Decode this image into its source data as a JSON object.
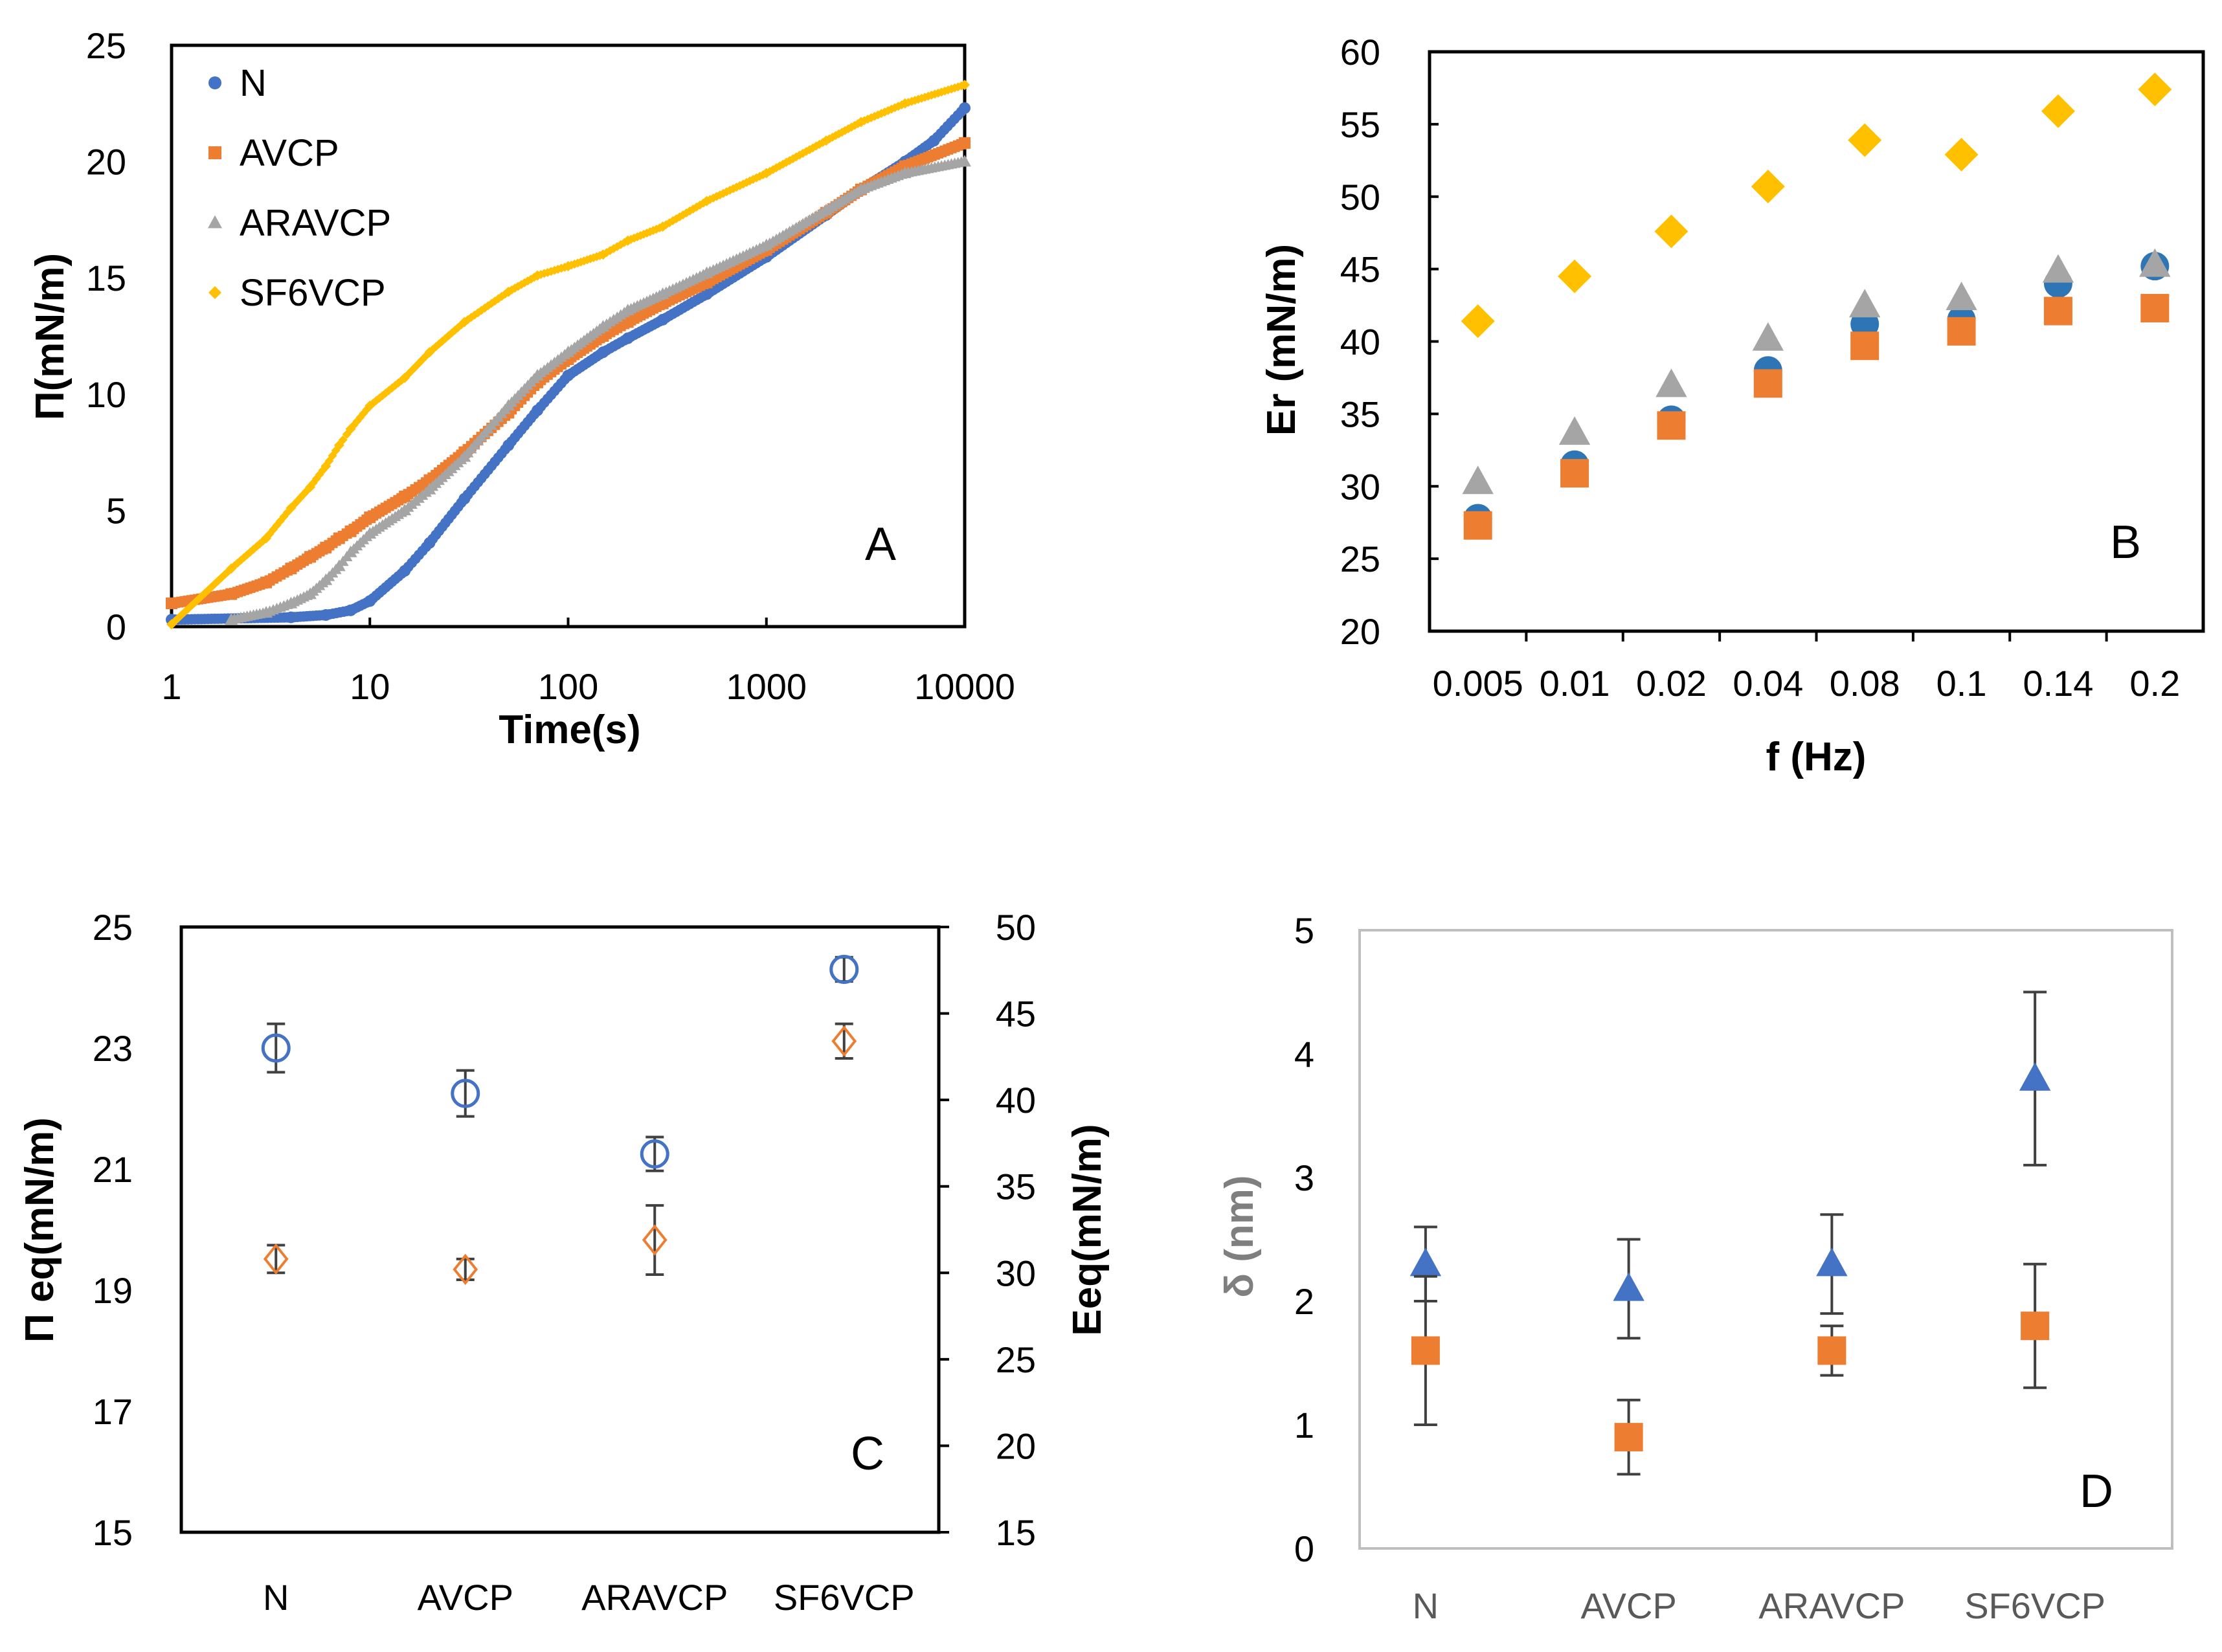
{
  "chart_data": [
    {
      "panel": "A",
      "type": "scatter",
      "panel_label": "A",
      "xlabel": "Time(s)",
      "ylabel": "Π(mN/m)",
      "xscale": "log",
      "xlim": [
        1,
        10000
      ],
      "ylim": [
        0,
        25
      ],
      "xticks": [
        "1",
        "10",
        "100",
        "1000",
        "10000"
      ],
      "yticks": [
        "0",
        "5",
        "10",
        "15",
        "20",
        "25"
      ],
      "legend_position": "top-left",
      "series": [
        {
          "name": "N",
          "color": "#4472c4",
          "marker": "circle",
          "x": [
            1,
            4,
            6,
            8,
            10,
            15,
            20,
            30,
            50,
            70,
            100,
            150,
            200,
            300,
            500,
            1000,
            2000,
            3000,
            5000,
            7000,
            10000
          ],
          "y": [
            0.3,
            0.4,
            0.5,
            0.7,
            1.1,
            2.4,
            3.6,
            5.5,
            7.8,
            9.3,
            10.8,
            11.8,
            12.4,
            13.2,
            14.3,
            15.9,
            17.7,
            18.8,
            20.0,
            20.9,
            22.3
          ]
        },
        {
          "name": "AVCP",
          "color": "#ed7d31",
          "marker": "square",
          "x": [
            1,
            2,
            3,
            4,
            5,
            6,
            7,
            8,
            10,
            15,
            20,
            30,
            50,
            70,
            100,
            150,
            200,
            300,
            500,
            1000,
            2000,
            3000,
            5000,
            10000
          ],
          "y": [
            1.0,
            1.4,
            1.9,
            2.5,
            3.0,
            3.4,
            3.8,
            4.1,
            4.7,
            5.6,
            6.3,
            7.5,
            9.2,
            10.5,
            11.5,
            12.5,
            13.1,
            13.9,
            14.8,
            16.2,
            17.8,
            18.8,
            19.8,
            20.8
          ]
        },
        {
          "name": "ARAVCP",
          "color": "#a5a5a5",
          "marker": "triangle",
          "x": [
            2,
            3,
            4,
            5,
            6,
            7,
            8,
            10,
            15,
            20,
            30,
            50,
            70,
            100,
            150,
            200,
            300,
            500,
            1000,
            2000,
            3000,
            5000,
            10000
          ],
          "y": [
            0.3,
            0.6,
            1.0,
            1.4,
            2.0,
            2.6,
            3.2,
            4.0,
            5.0,
            5.9,
            7.3,
            9.5,
            10.8,
            11.8,
            12.9,
            13.6,
            14.3,
            15.2,
            16.4,
            17.9,
            18.8,
            19.5,
            20.0
          ]
        },
        {
          "name": "SF6VCP",
          "color": "#ffc000",
          "marker": "diamond",
          "x": [
            1,
            2,
            3,
            4,
            5,
            6,
            7,
            8,
            10,
            15,
            20,
            30,
            50,
            70,
            100,
            150,
            200,
            300,
            500,
            1000,
            2000,
            3000,
            5000,
            10000
          ],
          "y": [
            0.1,
            2.5,
            3.8,
            5.1,
            6.0,
            6.9,
            7.8,
            8.5,
            9.5,
            10.7,
            11.8,
            13.1,
            14.4,
            15.1,
            15.5,
            16.0,
            16.6,
            17.2,
            18.3,
            19.5,
            20.9,
            21.7,
            22.5,
            23.3
          ]
        }
      ]
    },
    {
      "panel": "B",
      "type": "scatter",
      "panel_label": "B",
      "xlabel": "f (Hz)",
      "ylabel": "Er (mN/m)",
      "categories": [
        "0.005",
        "0.01",
        "0.02",
        "0.04",
        "0.08",
        "0.1",
        "0.14",
        "0.2"
      ],
      "ylim": [
        20,
        60
      ],
      "yticks": [
        "20",
        "25",
        "30",
        "35",
        "40",
        "45",
        "50",
        "55",
        "60"
      ],
      "series": [
        {
          "name": "N",
          "color": "#2e75b6",
          "marker": "circle",
          "values": [
            27.8,
            31.5,
            34.6,
            38.0,
            41.2,
            41.5,
            44.0,
            45.2
          ]
        },
        {
          "name": "ARAVCP",
          "color": "#a5a5a5",
          "marker": "triangle",
          "values": [
            30.3,
            33.7,
            37.0,
            40.2,
            42.5,
            43.0,
            44.9,
            45.3
          ]
        },
        {
          "name": "AVCP",
          "color": "#ed7d31",
          "marker": "square",
          "values": [
            27.3,
            30.9,
            34.2,
            37.1,
            39.7,
            40.7,
            42.1,
            42.3
          ]
        },
        {
          "name": "SF6VCP",
          "color": "#ffc000",
          "marker": "diamond",
          "values": [
            41.4,
            44.5,
            47.6,
            50.7,
            53.9,
            52.9,
            55.9,
            57.4
          ]
        }
      ]
    },
    {
      "panel": "C",
      "type": "scatter",
      "panel_label": "C",
      "xlabel": "",
      "ylabel": "Π eq(mN/m)",
      "ylabel_right": "Eeq(mN/m)",
      "categories": [
        "N",
        "AVCP",
        "ARAVCP",
        "SF6VCP"
      ],
      "ylim": [
        15,
        25
      ],
      "ylim_right": [
        15,
        50
      ],
      "yticks": [
        "15",
        "17",
        "19",
        "21",
        "23",
        "25"
      ],
      "yticks_right": [
        "15",
        "20",
        "25",
        "30",
        "35",
        "40",
        "45",
        "50"
      ],
      "series": [
        {
          "name": "Π eq",
          "axis": "left",
          "color": "#4472c4",
          "marker": "open-circle",
          "values": [
            23.0,
            22.25,
            21.25,
            24.3
          ],
          "errors": [
            0.4,
            0.38,
            0.28,
            0.2
          ]
        },
        {
          "name": "Eeq",
          "axis": "right",
          "color": "#ed7d31",
          "marker": "open-diamond",
          "values": [
            30.8,
            30.2,
            31.9,
            43.4
          ],
          "errors": [
            0.8,
            0.6,
            2.0,
            1.0
          ]
        }
      ]
    },
    {
      "panel": "D",
      "type": "scatter",
      "panel_label": "D",
      "xlabel": "",
      "ylabel": "δ (nm)",
      "categories": [
        "N",
        "AVCP",
        "ARAVCP",
        "SF6VCP"
      ],
      "ylim": [
        0,
        5
      ],
      "yticks": [
        "0",
        "1",
        "2",
        "3",
        "4",
        "5"
      ],
      "series": [
        {
          "name": "triangle series",
          "color": "#4472c4",
          "marker": "triangle",
          "values": [
            2.3,
            2.1,
            2.3,
            3.8
          ],
          "errors": [
            0.3,
            0.4,
            0.4,
            0.7
          ]
        },
        {
          "name": "square series",
          "color": "#ed7d31",
          "marker": "square",
          "values": [
            1.6,
            0.9,
            1.6,
            1.8
          ],
          "errors": [
            0.6,
            0.3,
            0.2,
            0.5
          ]
        }
      ]
    }
  ]
}
